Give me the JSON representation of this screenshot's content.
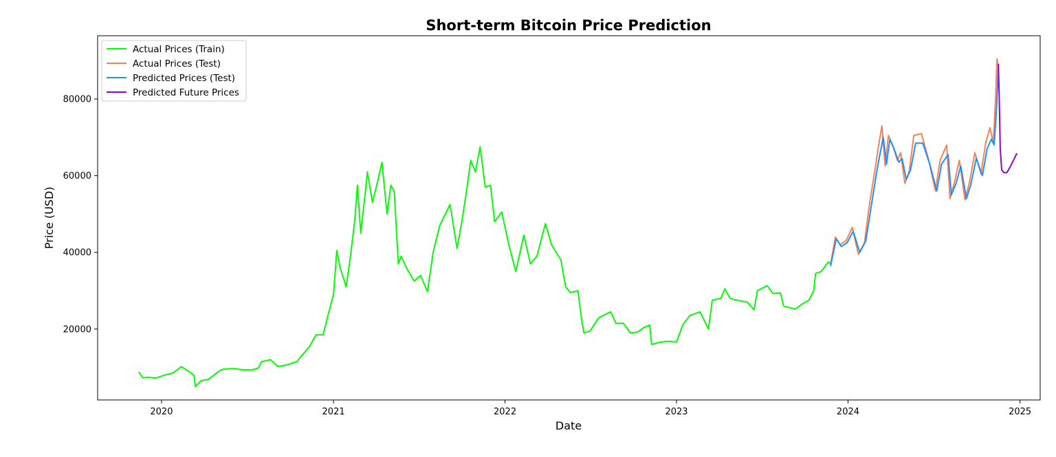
{
  "chart_data": {
    "type": "line",
    "title": "Short-term Bitcoin Price Prediction",
    "xlabel": "Date",
    "ylabel": "Price (USD)",
    "x_axis_type": "date",
    "xlim": [
      "2019-08-18",
      "2025-02-13"
    ],
    "ylim": [
      1500,
      96500
    ],
    "x_ticks": [
      {
        "date": "2020-01-01",
        "label": "2020"
      },
      {
        "date": "2021-01-01",
        "label": "2021"
      },
      {
        "date": "2022-01-01",
        "label": "2022"
      },
      {
        "date": "2023-01-01",
        "label": "2023"
      },
      {
        "date": "2024-01-01",
        "label": "2024"
      },
      {
        "date": "2025-01-01",
        "label": "2025"
      }
    ],
    "y_ticks": [
      20000,
      40000,
      60000,
      80000
    ],
    "grid": false,
    "legend_position": "top-left",
    "series": [
      {
        "name": "Actual Prices (Train)",
        "color": "#00ff00",
        "points": [
          [
            "2019-11-14",
            8700
          ],
          [
            "2019-11-22",
            7300
          ],
          [
            "2019-12-05",
            7400
          ],
          [
            "2019-12-20",
            7200
          ],
          [
            "2020-01-08",
            8000
          ],
          [
            "2020-01-25",
            8500
          ],
          [
            "2020-02-12",
            10200
          ],
          [
            "2020-03-01",
            8800
          ],
          [
            "2020-03-10",
            7900
          ],
          [
            "2020-03-13",
            5000
          ],
          [
            "2020-03-25",
            6500
          ],
          [
            "2020-04-10",
            6900
          ],
          [
            "2020-04-30",
            8800
          ],
          [
            "2020-05-10",
            9500
          ],
          [
            "2020-06-01",
            9700
          ],
          [
            "2020-06-20",
            9400
          ],
          [
            "2020-07-10",
            9300
          ],
          [
            "2020-07-25",
            9800
          ],
          [
            "2020-08-01",
            11500
          ],
          [
            "2020-08-20",
            12000
          ],
          [
            "2020-09-05",
            10200
          ],
          [
            "2020-09-25",
            10700
          ],
          [
            "2020-10-15",
            11500
          ],
          [
            "2020-10-25",
            13000
          ],
          [
            "2020-11-10",
            15300
          ],
          [
            "2020-11-25",
            18500
          ],
          [
            "2020-12-10",
            18500
          ],
          [
            "2020-12-20",
            23500
          ],
          [
            "2021-01-01",
            29000
          ],
          [
            "2021-01-08",
            40500
          ],
          [
            "2021-01-15",
            36000
          ],
          [
            "2021-01-28",
            31000
          ],
          [
            "2021-02-05",
            38000
          ],
          [
            "2021-02-15",
            48000
          ],
          [
            "2021-02-21",
            57500
          ],
          [
            "2021-02-28",
            45000
          ],
          [
            "2021-03-10",
            56000
          ],
          [
            "2021-03-14",
            61000
          ],
          [
            "2021-03-25",
            53000
          ],
          [
            "2021-04-05",
            58500
          ],
          [
            "2021-04-14",
            63500
          ],
          [
            "2021-04-25",
            50000
          ],
          [
            "2021-05-03",
            57500
          ],
          [
            "2021-05-10",
            56000
          ],
          [
            "2021-05-13",
            50000
          ],
          [
            "2021-05-19",
            37000
          ],
          [
            "2021-05-25",
            39000
          ],
          [
            "2021-06-05",
            36000
          ],
          [
            "2021-06-22",
            32500
          ],
          [
            "2021-07-05",
            34000
          ],
          [
            "2021-07-20",
            29800
          ],
          [
            "2021-08-01",
            40000
          ],
          [
            "2021-08-15",
            47000
          ],
          [
            "2021-09-06",
            52500
          ],
          [
            "2021-09-21",
            41000
          ],
          [
            "2021-10-01",
            48000
          ],
          [
            "2021-10-10",
            55000
          ],
          [
            "2021-10-20",
            64000
          ],
          [
            "2021-10-30",
            61000
          ],
          [
            "2021-11-09",
            67500
          ],
          [
            "2021-11-20",
            57000
          ],
          [
            "2021-12-01",
            57500
          ],
          [
            "2021-12-10",
            48000
          ],
          [
            "2021-12-25",
            50500
          ],
          [
            "2022-01-10",
            41500
          ],
          [
            "2022-01-24",
            35000
          ],
          [
            "2022-02-10",
            44500
          ],
          [
            "2022-02-24",
            37000
          ],
          [
            "2022-03-10",
            39000
          ],
          [
            "2022-03-28",
            47500
          ],
          [
            "2022-04-10",
            42000
          ],
          [
            "2022-04-30",
            38000
          ],
          [
            "2022-05-10",
            31000
          ],
          [
            "2022-05-20",
            29500
          ],
          [
            "2022-06-05",
            30000
          ],
          [
            "2022-06-13",
            22500
          ],
          [
            "2022-06-18",
            19000
          ],
          [
            "2022-07-01",
            19500
          ],
          [
            "2022-07-20",
            23000
          ],
          [
            "2022-08-14",
            24500
          ],
          [
            "2022-08-25",
            21500
          ],
          [
            "2022-09-10",
            21500
          ],
          [
            "2022-09-25",
            19000
          ],
          [
            "2022-10-10",
            19200
          ],
          [
            "2022-10-25",
            20500
          ],
          [
            "2022-11-05",
            21000
          ],
          [
            "2022-11-09",
            16000
          ],
          [
            "2022-11-25",
            16500
          ],
          [
            "2022-12-15",
            16800
          ],
          [
            "2023-01-01",
            16600
          ],
          [
            "2023-01-14",
            21000
          ],
          [
            "2023-01-29",
            23500
          ],
          [
            "2023-02-20",
            24500
          ],
          [
            "2023-03-10",
            20000
          ],
          [
            "2023-03-18",
            27500
          ],
          [
            "2023-04-05",
            28000
          ],
          [
            "2023-04-14",
            30500
          ],
          [
            "2023-04-25",
            28000
          ],
          [
            "2023-05-10",
            27500
          ],
          [
            "2023-06-01",
            27000
          ],
          [
            "2023-06-15",
            25000
          ],
          [
            "2023-06-22",
            30000
          ],
          [
            "2023-07-13",
            31300
          ],
          [
            "2023-07-25",
            29300
          ],
          [
            "2023-08-10",
            29400
          ],
          [
            "2023-08-17",
            26000
          ],
          [
            "2023-09-11",
            25200
          ],
          [
            "2023-09-25",
            26500
          ],
          [
            "2023-10-10",
            27500
          ],
          [
            "2023-10-20",
            30000
          ],
          [
            "2023-10-24",
            34500
          ],
          [
            "2023-11-05",
            35000
          ],
          [
            "2023-11-20",
            37500
          ],
          [
            "2023-11-25",
            37000
          ]
        ]
      },
      {
        "name": "Actual Prices (Test)",
        "color": "#ff7f50",
        "points": [
          [
            "2023-11-25",
            37000
          ],
          [
            "2023-12-05",
            44000
          ],
          [
            "2023-12-15",
            42000
          ],
          [
            "2023-12-28",
            43000
          ],
          [
            "2024-01-10",
            46500
          ],
          [
            "2024-01-23",
            39500
          ],
          [
            "2024-02-05",
            42500
          ],
          [
            "2024-02-15",
            52000
          ],
          [
            "2024-02-28",
            62000
          ],
          [
            "2024-03-05",
            67000
          ],
          [
            "2024-03-13",
            73000
          ],
          [
            "2024-03-20",
            62500
          ],
          [
            "2024-03-27",
            70500
          ],
          [
            "2024-04-05",
            68000
          ],
          [
            "2024-04-15",
            64000
          ],
          [
            "2024-04-22",
            66000
          ],
          [
            "2024-05-01",
            58000
          ],
          [
            "2024-05-10",
            61000
          ],
          [
            "2024-05-20",
            70500
          ],
          [
            "2024-06-05",
            71000
          ],
          [
            "2024-06-20",
            64500
          ],
          [
            "2024-07-05",
            56000
          ],
          [
            "2024-07-15",
            64000
          ],
          [
            "2024-07-29",
            68000
          ],
          [
            "2024-08-05",
            54000
          ],
          [
            "2024-08-15",
            58500
          ],
          [
            "2024-08-25",
            64000
          ],
          [
            "2024-09-06",
            53700
          ],
          [
            "2024-09-15",
            58000
          ],
          [
            "2024-09-27",
            66000
          ],
          [
            "2024-10-10",
            60500
          ],
          [
            "2024-10-20",
            68500
          ],
          [
            "2024-10-29",
            72500
          ],
          [
            "2024-11-05",
            68500
          ],
          [
            "2024-11-10",
            80000
          ],
          [
            "2024-11-13",
            90500
          ],
          [
            "2024-11-15",
            89000
          ]
        ]
      },
      {
        "name": "Predicted Prices (Test)",
        "color": "#1e90ff",
        "points": [
          [
            "2023-11-25",
            36500
          ],
          [
            "2023-12-07",
            43500
          ],
          [
            "2023-12-18",
            41500
          ],
          [
            "2023-12-30",
            42500
          ],
          [
            "2024-01-12",
            45500
          ],
          [
            "2024-01-26",
            40000
          ],
          [
            "2024-02-08",
            43000
          ],
          [
            "2024-02-18",
            51000
          ],
          [
            "2024-03-02",
            61000
          ],
          [
            "2024-03-08",
            65000
          ],
          [
            "2024-03-16",
            70000
          ],
          [
            "2024-03-23",
            63000
          ],
          [
            "2024-03-30",
            69500
          ],
          [
            "2024-04-08",
            67000
          ],
          [
            "2024-04-18",
            63500
          ],
          [
            "2024-04-25",
            64500
          ],
          [
            "2024-05-04",
            59000
          ],
          [
            "2024-05-13",
            61500
          ],
          [
            "2024-05-24",
            68500
          ],
          [
            "2024-06-08",
            68500
          ],
          [
            "2024-06-23",
            63000
          ],
          [
            "2024-07-08",
            56000
          ],
          [
            "2024-07-18",
            63000
          ],
          [
            "2024-08-01",
            65500
          ],
          [
            "2024-08-08",
            55000
          ],
          [
            "2024-08-18",
            58000
          ],
          [
            "2024-08-28",
            62500
          ],
          [
            "2024-09-09",
            54000
          ],
          [
            "2024-09-18",
            57500
          ],
          [
            "2024-09-30",
            64500
          ],
          [
            "2024-10-13",
            60000
          ],
          [
            "2024-10-23",
            67000
          ],
          [
            "2024-11-01",
            69500
          ],
          [
            "2024-11-07",
            68000
          ],
          [
            "2024-11-12",
            77000
          ],
          [
            "2024-11-15",
            86000
          ],
          [
            "2024-11-16",
            89000
          ]
        ]
      },
      {
        "name": "Predicted Future Prices",
        "color": "#9400d3",
        "points": [
          [
            "2024-11-16",
            89000
          ],
          [
            "2024-11-18",
            80000
          ],
          [
            "2024-11-20",
            67000
          ],
          [
            "2024-11-23",
            61500
          ],
          [
            "2024-11-28",
            60800
          ],
          [
            "2024-12-04",
            60800
          ],
          [
            "2024-12-12",
            62500
          ],
          [
            "2024-12-20",
            64500
          ],
          [
            "2024-12-25",
            65700
          ]
        ]
      }
    ]
  }
}
